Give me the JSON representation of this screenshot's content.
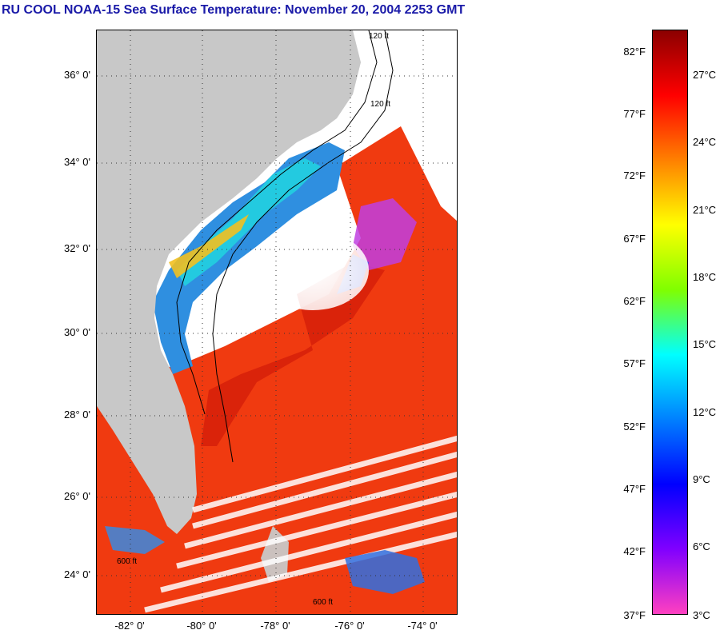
{
  "title": "RU COOL  NOAA-15  Sea Surface Temperature:  November 20, 2004 2253 GMT",
  "map": {
    "latitude_labels": [
      "36° 0'",
      "34° 0'",
      "32° 0'",
      "30° 0'",
      "28° 0'",
      "26° 0'",
      "24° 0'"
    ],
    "longitude_labels": [
      "-82° 0'",
      "-80° 0'",
      "-78° 0'",
      "-76° 0'",
      "-74° 0'"
    ],
    "contour_labels": [
      "120 ft",
      "120 ft",
      "600 ft",
      "600 ft"
    ],
    "colors": {
      "land": "#c8c8c8",
      "cloud": "#ffffff",
      "warm_ocean": "#f03a10",
      "cool_shelf": "#2f8fe0"
    }
  },
  "colorbar": {
    "fahrenheit": [
      "82°F",
      "77°F",
      "72°F",
      "67°F",
      "62°F",
      "57°F",
      "52°F",
      "47°F",
      "42°F",
      "37°F"
    ],
    "celsius": [
      "27°C",
      "24°C",
      "21°C",
      "18°C",
      "15°C",
      "12°C",
      "9°C",
      "6°C",
      "3°C"
    ],
    "gradient_stops": [
      "#8b0000",
      "#ff0000",
      "#ff8000",
      "#ffff00",
      "#80ff00",
      "#00ffff",
      "#0080ff",
      "#0000ff",
      "#8000ff",
      "#ff40c0"
    ]
  }
}
